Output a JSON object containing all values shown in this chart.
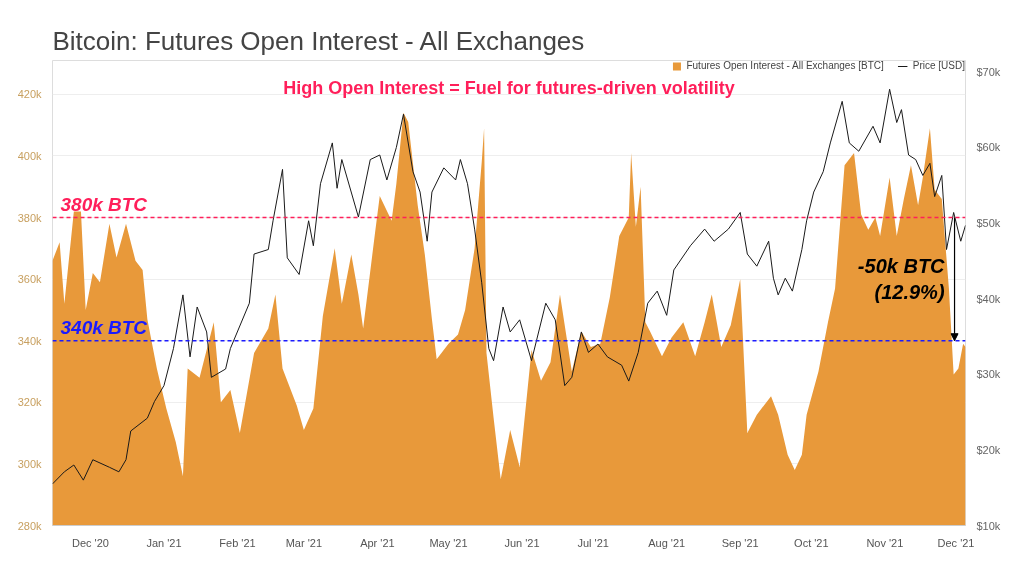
{
  "chart_data": {
    "type": "area",
    "title": "Bitcoin: Futures Open Interest - All Exchanges",
    "xlim": [
      "2020-11-15",
      "2021-12-05"
    ],
    "xticks": [
      {
        "value": "2020-12-01",
        "label": "Dec '20"
      },
      {
        "value": "2021-01-01",
        "label": "Jan '21"
      },
      {
        "value": "2021-02-01",
        "label": "Feb '21"
      },
      {
        "value": "2021-03-01",
        "label": "Mar '21"
      },
      {
        "value": "2021-04-01",
        "label": "Apr '21"
      },
      {
        "value": "2021-05-01",
        "label": "May '21"
      },
      {
        "value": "2021-06-01",
        "label": "Jun '21"
      },
      {
        "value": "2021-07-01",
        "label": "Jul '21"
      },
      {
        "value": "2021-08-01",
        "label": "Aug '21"
      },
      {
        "value": "2021-09-01",
        "label": "Sep '21"
      },
      {
        "value": "2021-10-01",
        "label": "Oct '21"
      },
      {
        "value": "2021-11-01",
        "label": "Nov '21"
      },
      {
        "value": "2021-12-01",
        "label": "Dec '21"
      }
    ],
    "ylim": [
      280000,
      431000
    ],
    "yticks": [
      {
        "value": 280000,
        "label": "280k"
      },
      {
        "value": 300000,
        "label": "300k"
      },
      {
        "value": 320000,
        "label": "320k"
      },
      {
        "value": 340000,
        "label": "340k"
      },
      {
        "value": 360000,
        "label": "360k"
      },
      {
        "value": 380000,
        "label": "380k"
      },
      {
        "value": 400000,
        "label": "400k"
      },
      {
        "value": 420000,
        "label": "420k"
      }
    ],
    "y2lim": [
      10000,
      71500
    ],
    "y2ticks": [
      {
        "value": 10000,
        "label": "$10k"
      },
      {
        "value": 20000,
        "label": "$20k"
      },
      {
        "value": 30000,
        "label": "$30k"
      },
      {
        "value": 40000,
        "label": "$40k"
      },
      {
        "value": 50000,
        "label": "$50k"
      },
      {
        "value": 60000,
        "label": "$60k"
      },
      {
        "value": 70000,
        "label": "$70k"
      }
    ],
    "grid": "y",
    "legend": "top right",
    "series": [
      {
        "name": "Futures Open Interest - All Exchanges [BTC]",
        "color": "#e8993a",
        "x": [
          "2020-11-15",
          "2020-11-18",
          "2020-11-20",
          "2020-11-24",
          "2020-11-27",
          "2020-11-29",
          "2020-12-02",
          "2020-12-05",
          "2020-12-09",
          "2020-12-12",
          "2020-12-16",
          "2020-12-20",
          "2020-12-23",
          "2020-12-25",
          "2020-12-29",
          "2021-01-02",
          "2021-01-06",
          "2021-01-09",
          "2021-01-11",
          "2021-01-16",
          "2021-01-22",
          "2021-01-25",
          "2021-01-29",
          "2021-02-02",
          "2021-02-08",
          "2021-02-14",
          "2021-02-17",
          "2021-02-20",
          "2021-02-26",
          "2021-03-01",
          "2021-03-05",
          "2021-03-09",
          "2021-03-14",
          "2021-03-17",
          "2021-03-21",
          "2021-03-24",
          "2021-03-26",
          "2021-03-31",
          "2021-04-02",
          "2021-04-07",
          "2021-04-09",
          "2021-04-12",
          "2021-04-14",
          "2021-04-18",
          "2021-04-21",
          "2021-04-24",
          "2021-04-26",
          "2021-05-01",
          "2021-05-05",
          "2021-05-08",
          "2021-05-12",
          "2021-05-15",
          "2021-05-16",
          "2021-05-17",
          "2021-05-20",
          "2021-05-23",
          "2021-05-27",
          "2021-05-31",
          "2021-06-05",
          "2021-06-09",
          "2021-06-13",
          "2021-06-17",
          "2021-06-22",
          "2021-06-26",
          "2021-06-30",
          "2021-07-04",
          "2021-07-08",
          "2021-07-12",
          "2021-07-16",
          "2021-07-17",
          "2021-07-19",
          "2021-07-21",
          "2021-07-23",
          "2021-07-25",
          "2021-07-30",
          "2021-08-03",
          "2021-08-08",
          "2021-08-13",
          "2021-08-17",
          "2021-08-20",
          "2021-08-24",
          "2021-08-28",
          "2021-09-01",
          "2021-09-04",
          "2021-09-08",
          "2021-09-14",
          "2021-09-17",
          "2021-09-21",
          "2021-09-24",
          "2021-09-27",
          "2021-09-29",
          "2021-10-04",
          "2021-10-08",
          "2021-10-11",
          "2021-10-15",
          "2021-10-19",
          "2021-10-22",
          "2021-10-25",
          "2021-10-28",
          "2021-10-30",
          "2021-11-03",
          "2021-11-06",
          "2021-11-09",
          "2021-11-12",
          "2021-11-15",
          "2021-11-17",
          "2021-11-20",
          "2021-11-22",
          "2021-11-25",
          "2021-11-28",
          "2021-11-30",
          "2021-12-02",
          "2021-12-04",
          "2021-12-05"
        ],
        "values": [
          366000,
          372000,
          352000,
          382000,
          382000,
          350000,
          362000,
          359000,
          378000,
          367000,
          378000,
          366000,
          363000,
          347000,
          331000,
          318000,
          307000,
          296000,
          331000,
          328000,
          346000,
          320000,
          324000,
          310000,
          336000,
          344000,
          355000,
          331000,
          319000,
          311000,
          318000,
          348000,
          370000,
          352000,
          368000,
          355000,
          344000,
          375000,
          387000,
          379000,
          391000,
          414000,
          411000,
          384000,
          368000,
          347000,
          334000,
          339000,
          342000,
          350000,
          370000,
          398000,
          409000,
          336000,
          315000,
          295000,
          311000,
          299000,
          337000,
          327000,
          333000,
          355000,
          330000,
          343000,
          338000,
          339000,
          354000,
          374000,
          380000,
          401000,
          377000,
          390000,
          346000,
          343000,
          335000,
          341000,
          346000,
          335000,
          346000,
          355000,
          338000,
          345000,
          360000,
          310000,
          316000,
          322000,
          316000,
          303000,
          298000,
          303000,
          316000,
          330000,
          346000,
          357000,
          397000,
          401000,
          381000,
          376000,
          380000,
          374000,
          393000,
          374000,
          386000,
          397000,
          384000,
          393000,
          409000,
          389000,
          386000,
          357000,
          329000,
          331000,
          339000,
          338000
        ]
      },
      {
        "name": "Price [USD]",
        "type": "line",
        "axis": "y2",
        "color": "#1a1a1a",
        "x": [
          "2020-11-15",
          "2020-11-20",
          "2020-11-24",
          "2020-11-28",
          "2020-12-02",
          "2020-12-09",
          "2020-12-13",
          "2020-12-16",
          "2020-12-18",
          "2020-12-25",
          "2020-12-28",
          "2021-01-01",
          "2021-01-05",
          "2021-01-09",
          "2021-01-12",
          "2021-01-15",
          "2021-01-19",
          "2021-01-21",
          "2021-01-27",
          "2021-01-29",
          "2021-02-06",
          "2021-02-08",
          "2021-02-14",
          "2021-02-16",
          "2021-02-20",
          "2021-02-22",
          "2021-02-27",
          "2021-03-03",
          "2021-03-05",
          "2021-03-08",
          "2021-03-13",
          "2021-03-15",
          "2021-03-17",
          "2021-03-24",
          "2021-03-29",
          "2021-04-02",
          "2021-04-05",
          "2021-04-09",
          "2021-04-12",
          "2021-04-16",
          "2021-04-19",
          "2021-04-22",
          "2021-04-24",
          "2021-04-29",
          "2021-05-04",
          "2021-05-06",
          "2021-05-09",
          "2021-05-12",
          "2021-05-15",
          "2021-05-18",
          "2021-05-20",
          "2021-05-24",
          "2021-05-27",
          "2021-05-31",
          "2021-06-05",
          "2021-06-11",
          "2021-06-15",
          "2021-06-19",
          "2021-06-22",
          "2021-06-26",
          "2021-06-29",
          "2021-07-03",
          "2021-07-07",
          "2021-07-13",
          "2021-07-16",
          "2021-07-20",
          "2021-07-24",
          "2021-07-28",
          "2021-08-01",
          "2021-08-04",
          "2021-08-11",
          "2021-08-17",
          "2021-08-21",
          "2021-08-27",
          "2021-09-01",
          "2021-09-04",
          "2021-09-08",
          "2021-09-13",
          "2021-09-15",
          "2021-09-17",
          "2021-09-20",
          "2021-09-23",
          "2021-09-27",
          "2021-09-29",
          "2021-10-02",
          "2021-10-06",
          "2021-10-09",
          "2021-10-14",
          "2021-10-17",
          "2021-10-21",
          "2021-10-27",
          "2021-10-30",
          "2021-11-03",
          "2021-11-06",
          "2021-11-08",
          "2021-11-11",
          "2021-11-14",
          "2021-11-17",
          "2021-11-20",
          "2021-11-22",
          "2021-11-25",
          "2021-11-27",
          "2021-11-30",
          "2021-12-03",
          "2021-12-05"
        ],
        "values": [
          15500,
          17100,
          18000,
          16000,
          18700,
          17700,
          17100,
          18700,
          22500,
          24200,
          26400,
          28500,
          33400,
          40500,
          32300,
          38900,
          35600,
          29600,
          30700,
          33400,
          39400,
          45900,
          46500,
          50300,
          57100,
          45400,
          43200,
          50300,
          47000,
          55200,
          60600,
          54600,
          58400,
          50800,
          58400,
          59000,
          55700,
          60000,
          64400,
          56800,
          54100,
          47600,
          54100,
          57300,
          55700,
          58400,
          55200,
          49200,
          42100,
          33400,
          31800,
          38900,
          35600,
          37200,
          31800,
          39400,
          37200,
          28500,
          29600,
          35600,
          32900,
          34000,
          32300,
          31200,
          29100,
          32900,
          39400,
          41000,
          37800,
          43800,
          47000,
          49200,
          47600,
          49200,
          51400,
          45900,
          44300,
          47600,
          42700,
          40500,
          42700,
          41000,
          46500,
          50300,
          54100,
          56800,
          60600,
          66100,
          60600,
          59500,
          62800,
          60600,
          67700,
          63300,
          65000,
          59000,
          58400,
          56300,
          57900,
          53500,
          56300,
          46500,
          51400,
          47600,
          49700
        ]
      }
    ],
    "ref_lines": [
      {
        "axis": "y",
        "value": 380000,
        "label": "380k BTC",
        "color": "#ff1f5a",
        "line_style": "dashed"
      },
      {
        "axis": "y",
        "value": 340000,
        "label": "340k BTC",
        "color": "#1a1aff",
        "line_style": "dashed"
      }
    ],
    "annotations": [
      "High Open Interest = Fuel for futures-driven volatility",
      "-50k BTC\n(12.9%)"
    ]
  }
}
